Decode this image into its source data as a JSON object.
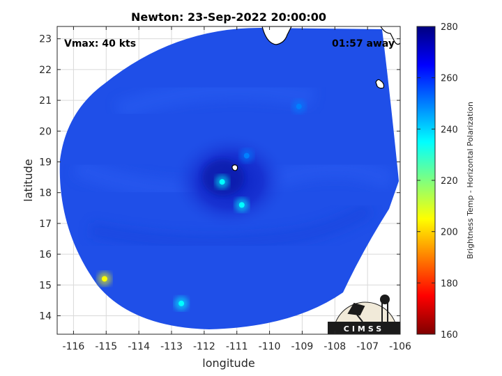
{
  "title": "Newton: 23-Sep-2022 20:00:00",
  "annotations": {
    "vmax": "Vmax: 40 kts",
    "time_away": "01:57 away"
  },
  "axes": {
    "xlabel": "longitude",
    "ylabel": "latitude",
    "xlim": [
      -116.5,
      -106
    ],
    "ylim": [
      13.4,
      23.4
    ],
    "xticks": [
      -116,
      -115,
      -114,
      -113,
      -112,
      -111,
      -110,
      -109,
      -108,
      -107,
      -106
    ],
    "yticks": [
      14,
      15,
      16,
      17,
      18,
      19,
      20,
      21,
      22,
      23
    ],
    "grid": true
  },
  "colorbar": {
    "label": "Brightness Temp - Horizontal Polarization",
    "range": [
      160,
      280
    ],
    "ticks": [
      160,
      180,
      200,
      220,
      240,
      260,
      280
    ],
    "colormap": [
      "#7f0000",
      "#ff0000",
      "#ff7f00",
      "#ffff00",
      "#7fff7f",
      "#00ffff",
      "#007fff",
      "#0000ff",
      "#00007f"
    ]
  },
  "logo": {
    "text": "CIMSS"
  },
  "scene": {
    "background_color": "#1f4fe8",
    "center": [
      -111.2,
      18.6
    ],
    "spots": [
      {
        "lon": -111.45,
        "lat": 18.35,
        "value": 228
      },
      {
        "lon": -110.85,
        "lat": 17.6,
        "value": 235
      },
      {
        "lon": -110.7,
        "lat": 19.2,
        "value": 245
      },
      {
        "lon": -115.05,
        "lat": 15.2,
        "value": 200
      },
      {
        "lon": -112.7,
        "lat": 14.4,
        "value": 238
      },
      {
        "lon": -109.1,
        "lat": 20.8,
        "value": 248
      }
    ]
  }
}
